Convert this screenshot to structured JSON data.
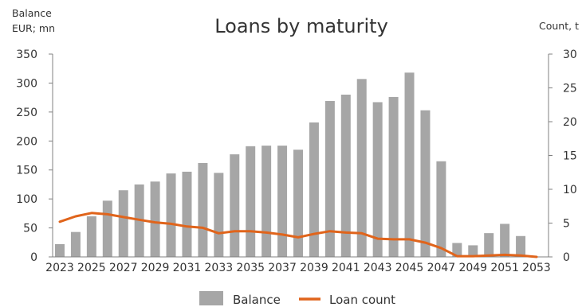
{
  "chart_data": {
    "type": "bar",
    "title": "Loans by maturity",
    "ylabel_left": [
      "Balance",
      "EUR; mn"
    ],
    "ylabel_right": "Count, t",
    "categories": [
      "2023",
      "2024",
      "2025",
      "2026",
      "2027",
      "2028",
      "2029",
      "2030",
      "2031",
      "2032",
      "2033",
      "2034",
      "2035",
      "2036",
      "2037",
      "2038",
      "2039",
      "2040",
      "2041",
      "2042",
      "2043",
      "2044",
      "2045",
      "2046",
      "2047",
      "2048",
      "2049",
      "2050",
      "2051",
      "2052",
      "2053"
    ],
    "x_tick_labels": [
      "2023",
      "2025",
      "2027",
      "2029",
      "2031",
      "2033",
      "2035",
      "2037",
      "2039",
      "2041",
      "2043",
      "2045",
      "2047",
      "2049",
      "2051",
      "2053"
    ],
    "ylim_left": [
      0,
      350
    ],
    "yticks_left": [
      0,
      50,
      100,
      150,
      200,
      250,
      300,
      350
    ],
    "ylim_right": [
      0,
      30
    ],
    "yticks_right": [
      0,
      5,
      10,
      15,
      20,
      25,
      30
    ],
    "grid": false,
    "legend_position": "bottom-center",
    "series": [
      {
        "name": "Balance",
        "type": "bar",
        "axis": "left",
        "color": "#a6a6a6",
        "values": [
          22,
          43,
          70,
          97,
          115,
          125,
          130,
          144,
          147,
          162,
          145,
          177,
          191,
          192,
          192,
          185,
          232,
          269,
          280,
          307,
          267,
          276,
          318,
          253,
          165,
          24,
          20,
          41,
          57,
          36,
          null
        ]
      },
      {
        "name": "Loan count",
        "type": "line",
        "axis": "right",
        "color": "#e0641b",
        "values": [
          5.2,
          6.0,
          6.5,
          6.3,
          5.9,
          5.5,
          5.1,
          4.9,
          4.5,
          4.3,
          3.5,
          3.8,
          3.8,
          3.6,
          3.3,
          2.9,
          3.4,
          3.8,
          3.6,
          3.5,
          2.7,
          2.6,
          2.6,
          2.1,
          1.3,
          0.1,
          0.1,
          0.2,
          0.3,
          0.2,
          0.0
        ]
      }
    ]
  }
}
